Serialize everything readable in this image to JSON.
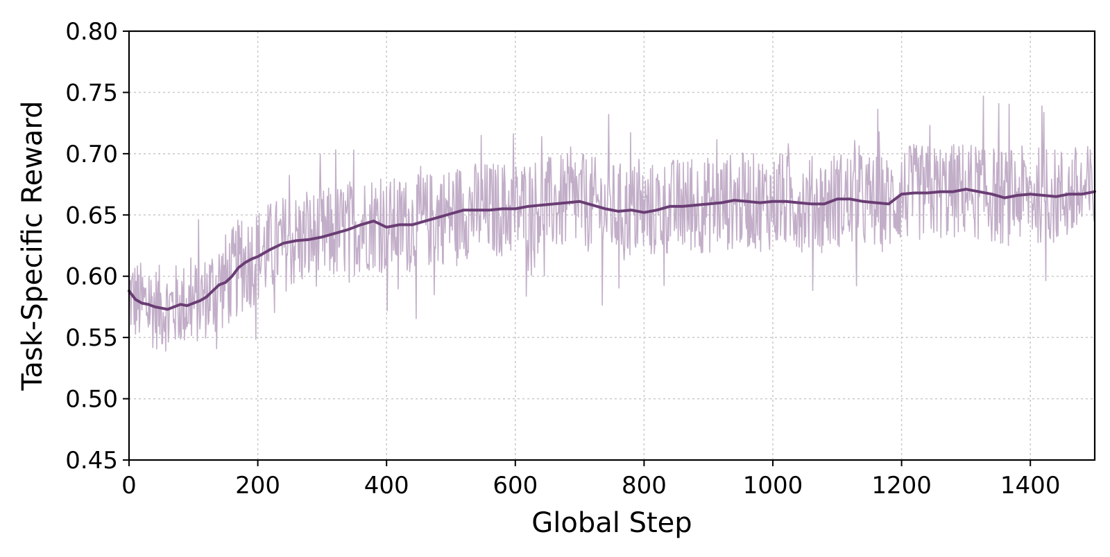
{
  "chart_data": {
    "type": "line",
    "title": "",
    "xlabel": "Global Step",
    "ylabel": "Task-Specific Reward",
    "xlim": [
      0,
      1500
    ],
    "ylim": [
      0.45,
      0.8
    ],
    "xticks": [
      0,
      200,
      400,
      600,
      800,
      1000,
      1200,
      1400
    ],
    "yticks": [
      "0.45",
      "0.50",
      "0.55",
      "0.60",
      "0.65",
      "0.70",
      "0.75",
      "0.80"
    ],
    "grid": true,
    "colors": {
      "raw": "#c2aec8",
      "smoothed": "#6a3d74"
    },
    "series": [
      {
        "role": "raw",
        "description_points": "per-step reward (noisy), amplitude approx ±0.05–0.1 around the smoothed trend",
        "x": [
          0,
          10,
          20,
          30,
          40,
          50,
          60,
          70,
          80,
          90,
          100,
          110,
          120,
          130,
          140,
          150,
          160,
          170,
          180,
          190,
          200,
          220,
          240,
          260,
          280,
          300,
          320,
          340,
          360,
          380,
          400,
          420,
          440,
          460,
          480,
          500,
          520,
          540,
          560,
          580,
          600,
          620,
          640,
          660,
          680,
          700,
          720,
          740,
          760,
          780,
          800,
          820,
          840,
          860,
          880,
          900,
          920,
          940,
          960,
          980,
          1000,
          1020,
          1040,
          1060,
          1080,
          1100,
          1120,
          1140,
          1160,
          1180,
          1200,
          1220,
          1240,
          1260,
          1280,
          1300,
          1320,
          1340,
          1360,
          1380,
          1400,
          1420,
          1440,
          1460,
          1480,
          1500
        ],
        "values": [
          0.585,
          0.58,
          0.577,
          0.576,
          0.575,
          0.574,
          0.573,
          0.575,
          0.577,
          0.576,
          0.578,
          0.58,
          0.583,
          0.588,
          0.593,
          0.596,
          0.6,
          0.607,
          0.611,
          0.614,
          0.617,
          0.622,
          0.627,
          0.629,
          0.63,
          0.632,
          0.635,
          0.639,
          0.642,
          0.645,
          0.64,
          0.642,
          0.642,
          0.645,
          0.648,
          0.651,
          0.654,
          0.654,
          0.654,
          0.655,
          0.655,
          0.657,
          0.658,
          0.659,
          0.66,
          0.661,
          0.658,
          0.655,
          0.653,
          0.654,
          0.652,
          0.654,
          0.657,
          0.657,
          0.658,
          0.658,
          0.66,
          0.661,
          0.662,
          0.66,
          0.661,
          0.661,
          0.66,
          0.659,
          0.659,
          0.663,
          0.663,
          0.661,
          0.66,
          0.659,
          0.667,
          0.668,
          0.668,
          0.669,
          0.669,
          0.671,
          0.669,
          0.667,
          0.664,
          0.666,
          0.667,
          0.666,
          0.665,
          0.667,
          0.667,
          0.668
        ]
      },
      {
        "role": "smoothed",
        "x": [
          0,
          10,
          20,
          30,
          40,
          50,
          60,
          70,
          80,
          90,
          100,
          110,
          120,
          130,
          140,
          150,
          160,
          170,
          180,
          190,
          200,
          220,
          240,
          260,
          280,
          300,
          320,
          340,
          360,
          380,
          400,
          420,
          440,
          460,
          480,
          500,
          520,
          540,
          560,
          580,
          600,
          620,
          640,
          660,
          680,
          700,
          720,
          740,
          760,
          780,
          800,
          820,
          840,
          860,
          880,
          900,
          920,
          940,
          960,
          980,
          1000,
          1020,
          1040,
          1060,
          1080,
          1100,
          1120,
          1140,
          1160,
          1180,
          1200,
          1220,
          1240,
          1260,
          1280,
          1300,
          1320,
          1340,
          1360,
          1380,
          1400,
          1420,
          1440,
          1460,
          1480,
          1500
        ],
        "values": [
          0.588,
          0.581,
          0.578,
          0.577,
          0.575,
          0.574,
          0.573,
          0.575,
          0.577,
          0.576,
          0.578,
          0.58,
          0.583,
          0.588,
          0.593,
          0.595,
          0.6,
          0.607,
          0.611,
          0.614,
          0.616,
          0.622,
          0.627,
          0.629,
          0.63,
          0.632,
          0.635,
          0.638,
          0.642,
          0.645,
          0.64,
          0.642,
          0.642,
          0.645,
          0.648,
          0.651,
          0.654,
          0.654,
          0.654,
          0.655,
          0.655,
          0.657,
          0.658,
          0.659,
          0.66,
          0.661,
          0.658,
          0.655,
          0.653,
          0.654,
          0.652,
          0.654,
          0.657,
          0.657,
          0.658,
          0.659,
          0.66,
          0.662,
          0.661,
          0.66,
          0.661,
          0.661,
          0.66,
          0.659,
          0.659,
          0.663,
          0.663,
          0.661,
          0.66,
          0.659,
          0.667,
          0.668,
          0.668,
          0.669,
          0.669,
          0.671,
          0.669,
          0.667,
          0.664,
          0.666,
          0.667,
          0.666,
          0.665,
          0.667,
          0.667,
          0.669
        ]
      }
    ]
  }
}
